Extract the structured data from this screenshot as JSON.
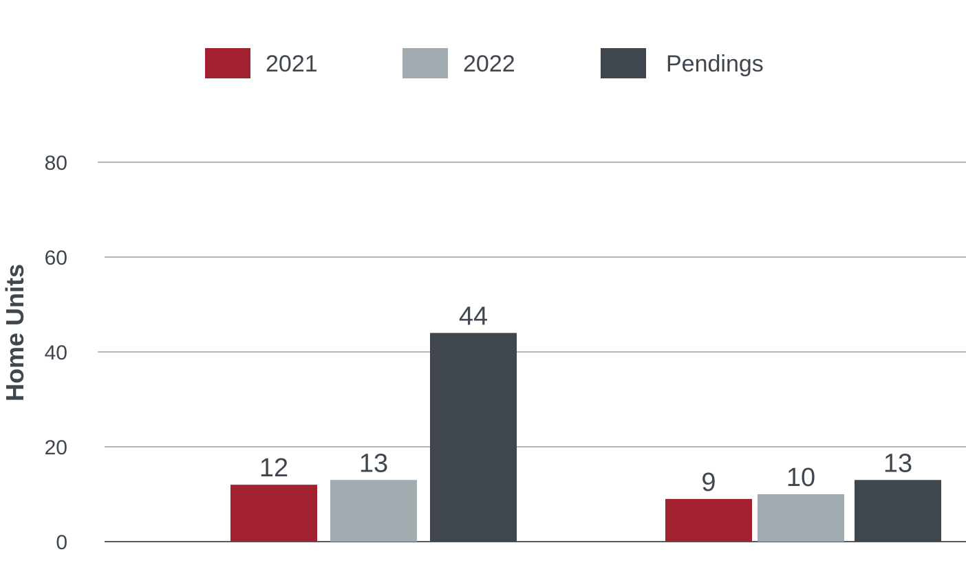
{
  "chart_data": {
    "type": "bar",
    "categories": [
      "",
      ""
    ],
    "series": [
      {
        "name": "2021",
        "color": "#a12131",
        "values": [
          12,
          9
        ]
      },
      {
        "name": "2022",
        "color": "#a2abb0",
        "values": [
          13,
          10
        ]
      },
      {
        "name": "Pendings",
        "color": "#3f464d",
        "values": [
          44,
          13
        ]
      }
    ],
    "ylabel": "Home Units",
    "ylim": [
      0,
      80
    ],
    "yticks": [
      "0",
      "20",
      "40",
      "60",
      "80"
    ],
    "grid": true,
    "legend_position": "top-center"
  }
}
